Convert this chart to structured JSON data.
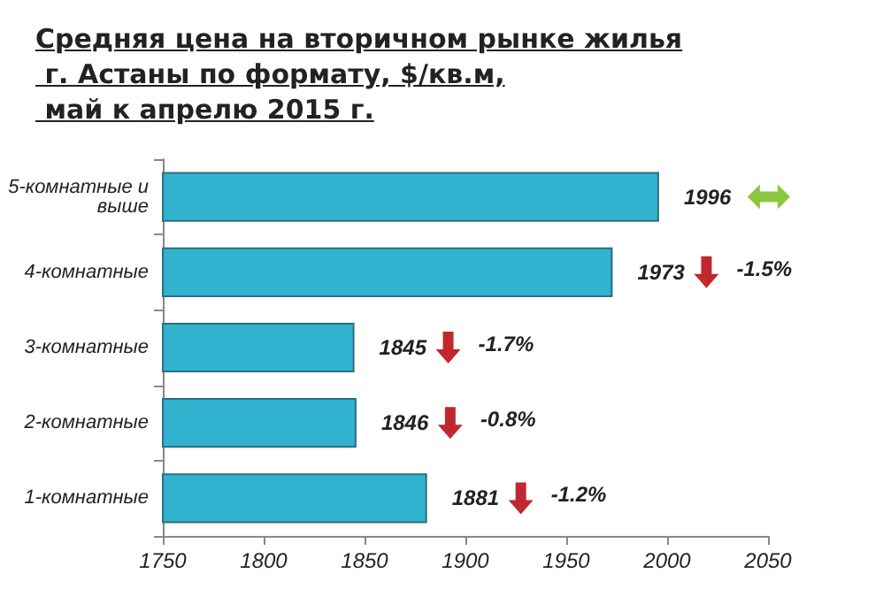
{
  "chart_data": {
    "type": "bar",
    "orientation": "horizontal",
    "title": "Средняя цена на вторичном рынке жилья\n г. Астаны по формату, $/кв.м,\n май к апрелю 2015 г.",
    "categories": [
      "5-комнатные и\nвыше",
      "4-комнатные",
      "3-комнатные",
      "2-комнатные",
      "1-комнатные"
    ],
    "values": [
      1996,
      1973,
      1845,
      1846,
      1881
    ],
    "color": "#31b3cf",
    "xlim": [
      1750,
      2050
    ],
    "xticks": [
      1750,
      1800,
      1850,
      1900,
      1950,
      2000,
      2050
    ],
    "grid": false,
    "data_labels": true,
    "annotations": [
      "-1.5%",
      "-1.7%",
      "-0.8%",
      "-1.2%"
    ]
  }
}
